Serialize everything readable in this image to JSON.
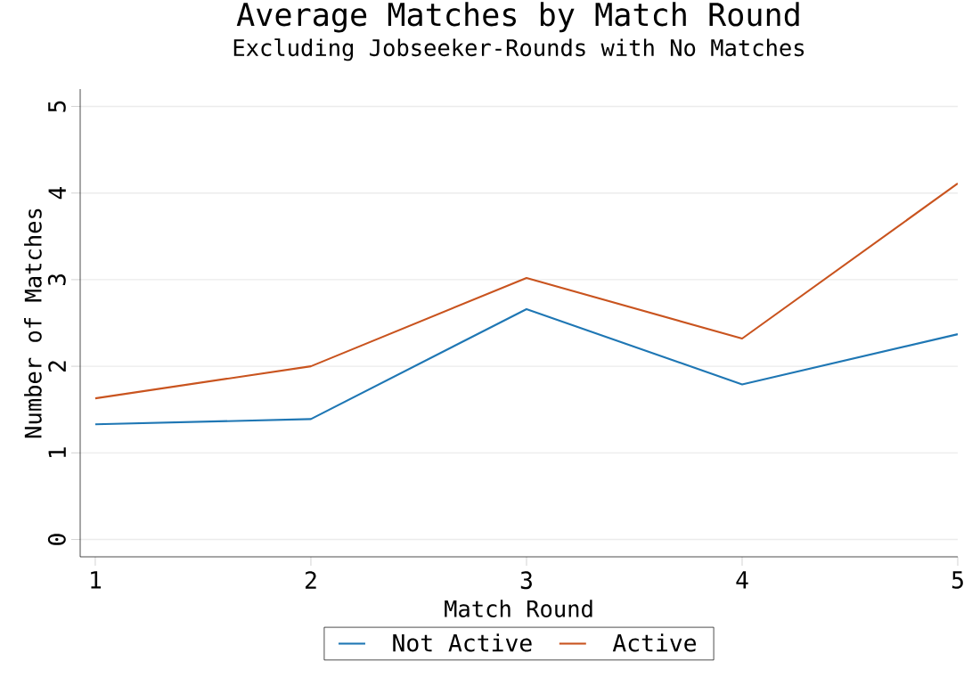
{
  "chart_data": {
    "type": "line",
    "title": "Average Matches by Match Round",
    "subtitle": "Excluding Jobseeker-Rounds with No Matches",
    "xlabel": "Match Round",
    "ylabel": "Number of Matches",
    "x": [
      1,
      2,
      3,
      4,
      5
    ],
    "series": [
      {
        "name": "Not Active",
        "color": "#1f77b4",
        "values": [
          1.33,
          1.39,
          2.66,
          1.79,
          2.37
        ]
      },
      {
        "name": "Active",
        "color": "#c9541f",
        "values": [
          1.63,
          2.0,
          3.02,
          2.32,
          4.11
        ]
      }
    ],
    "xlim": [
      0.93,
      5
    ],
    "xticks": [
      1,
      2,
      3,
      4,
      5
    ],
    "ylim": [
      -0.2,
      5.2
    ],
    "yticks": [
      0,
      1,
      2,
      3,
      4,
      5
    ],
    "grid": "y",
    "legend": "bottom",
    "marker": "none",
    "line_style": "solid"
  }
}
